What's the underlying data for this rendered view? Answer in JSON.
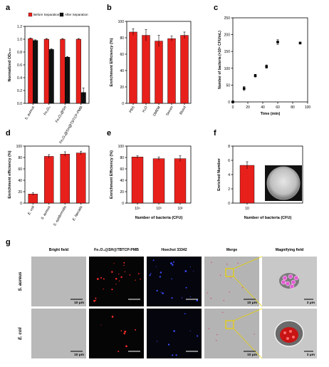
{
  "chart_data": [
    {
      "panel": "a",
      "type": "bar",
      "ylabel": "Normalized OD₆₀₀",
      "ylim": [
        0,
        1.2
      ],
      "yticks": [
        "0.0",
        "0.2",
        "0.4",
        "0.6",
        "0.8",
        "1.0",
        "1.2"
      ],
      "categories": [
        "S. aureus",
        "Fe₃O₄",
        "Fe₃O₄@SH",
        "Fe₃O₄@SH@TBTCP-PMB"
      ],
      "series": [
        {
          "name": "Before Separation",
          "color": "#e8201c",
          "values": [
            1.01,
            1.0,
            1.0,
            1.0
          ],
          "err": [
            0.01,
            0.01,
            0.01,
            0.01
          ]
        },
        {
          "name": "After Separation",
          "color": "#111111",
          "values": [
            0.98,
            0.84,
            0.72,
            0.17
          ],
          "err": [
            0.01,
            0.01,
            0.01,
            0.07
          ]
        }
      ],
      "legend": "top"
    },
    {
      "panel": "b",
      "type": "bar",
      "ylabel": "Enrichment Efficiency (%)",
      "ylim": [
        0,
        100
      ],
      "yticks": [
        "0",
        "20",
        "40",
        "60",
        "80",
        "100"
      ],
      "categories": [
        "PBS",
        "H₂O",
        "DMEM",
        "Serum",
        "Blood"
      ],
      "series": [
        {
          "color": "#e8201c",
          "values": [
            87,
            83,
            76,
            79,
            83
          ],
          "err": [
            4,
            7,
            7,
            3,
            4
          ]
        }
      ]
    },
    {
      "panel": "c",
      "type": "scatter",
      "xlabel": "Time (min)",
      "ylabel": "Number of bacteria (×10⁴ CFU/mL)",
      "xlim": [
        0,
        100
      ],
      "ylim": [
        0,
        250
      ],
      "xticks": [
        "0",
        "20",
        "40",
        "60",
        "80",
        "100"
      ],
      "yticks": [
        "0",
        "50",
        "100",
        "150",
        "200",
        "250"
      ],
      "x": [
        0,
        15,
        30,
        45,
        60,
        90
      ],
      "y": [
        0,
        40,
        78,
        105,
        178,
        175
      ],
      "err": [
        0,
        6,
        4,
        5,
        7,
        0
      ]
    },
    {
      "panel": "d",
      "type": "bar",
      "ylabel": "Enrichment efficiency (%)",
      "ylim": [
        0,
        100
      ],
      "yticks": [
        "0",
        "20",
        "40",
        "60",
        "80",
        "100"
      ],
      "categories": [
        "E. coli",
        "S. aureus",
        "S. epidermidis",
        "E. faecalis"
      ],
      "series": [
        {
          "color": "#e8201c",
          "values": [
            16,
            82,
            86,
            88
          ],
          "err": [
            2,
            3,
            4,
            3
          ]
        }
      ]
    },
    {
      "panel": "e",
      "type": "bar",
      "xlabel": "Number of bacteria (CFU)",
      "ylabel": "Enrichment Efficiency (%)",
      "ylim": [
        0,
        100
      ],
      "yticks": [
        "0",
        "20",
        "40",
        "60",
        "80",
        "100"
      ],
      "categories": [
        "10⁴",
        "10³",
        "10²"
      ],
      "series": [
        {
          "color": "#e8201c",
          "values": [
            81,
            78,
            78
          ],
          "err": [
            2,
            3,
            5
          ]
        }
      ]
    },
    {
      "panel": "f",
      "type": "bar",
      "xlabel": "Number of bacteria (CFU)",
      "ylabel": "Enriched Number",
      "ylim": [
        0,
        8
      ],
      "yticks": [
        "0",
        "2",
        "4",
        "6",
        "8"
      ],
      "categories": [
        "10"
      ],
      "series": [
        {
          "color": "#e8201c",
          "values": [
            5.3
          ],
          "err": [
            0.5
          ]
        }
      ]
    }
  ],
  "panel_labels": [
    "a",
    "b",
    "c",
    "d",
    "e",
    "f",
    "g"
  ],
  "micro": {
    "columns": [
      "Bright field",
      "Fe₃O₄@SH@TBTCP-PMB",
      "Hoechst 33342",
      "Merge",
      "Magnifying field"
    ],
    "rows": [
      "S. aureus",
      "E. coli"
    ],
    "scale_10": "10 μm",
    "scale_3": "3 μm"
  }
}
